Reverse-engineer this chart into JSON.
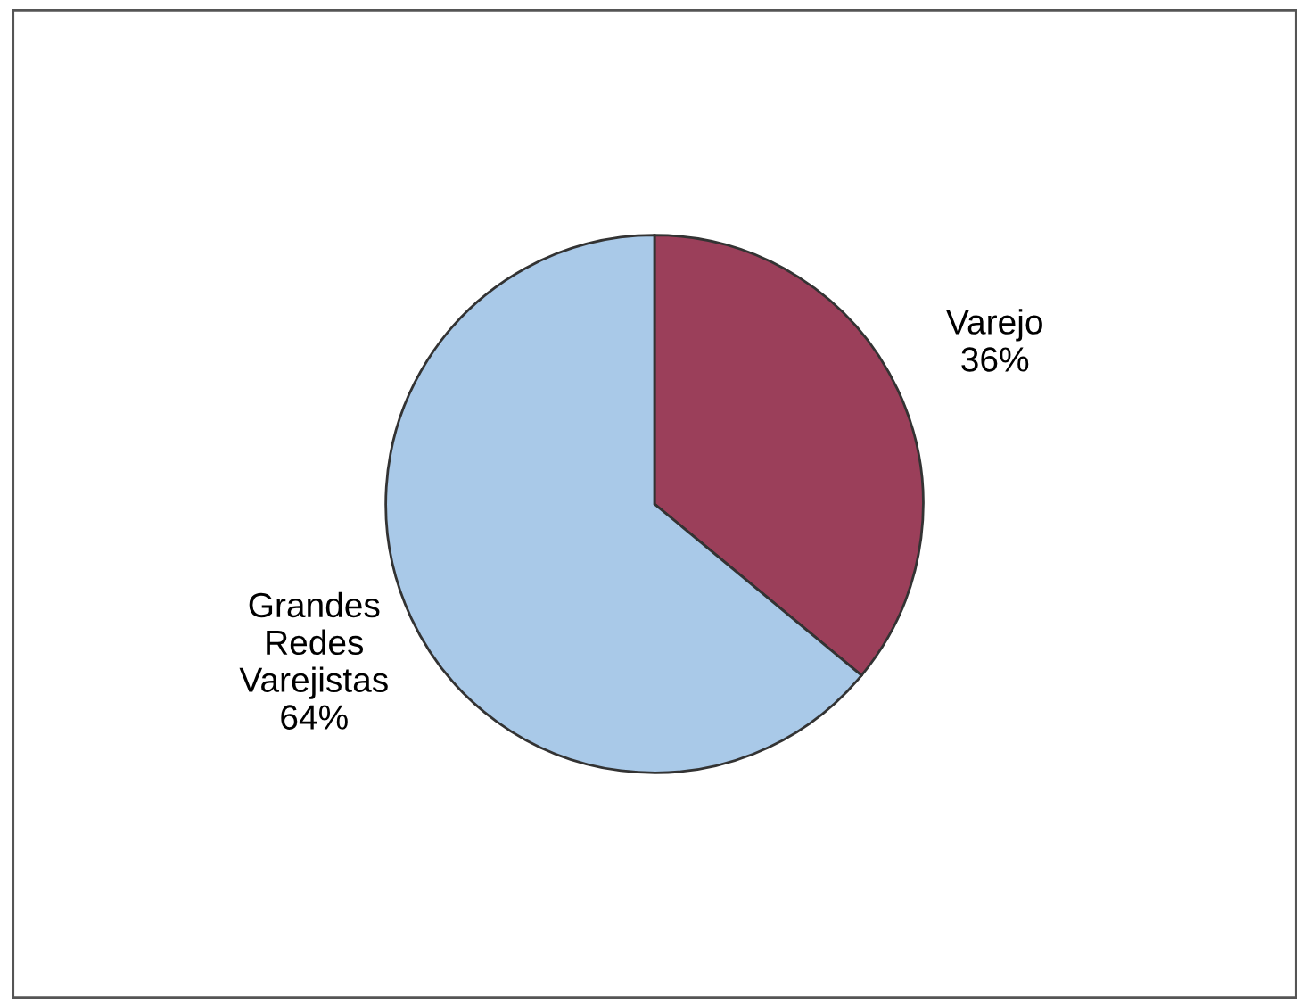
{
  "chart_data": {
    "type": "pie",
    "categories": [
      "Varejo",
      "Grandes Redes Varejistas"
    ],
    "values": [
      36,
      64
    ],
    "colors": [
      "#9b3f5a",
      "#a9c9e8"
    ],
    "value_labels": [
      "36%",
      "64%"
    ],
    "legend": false
  }
}
